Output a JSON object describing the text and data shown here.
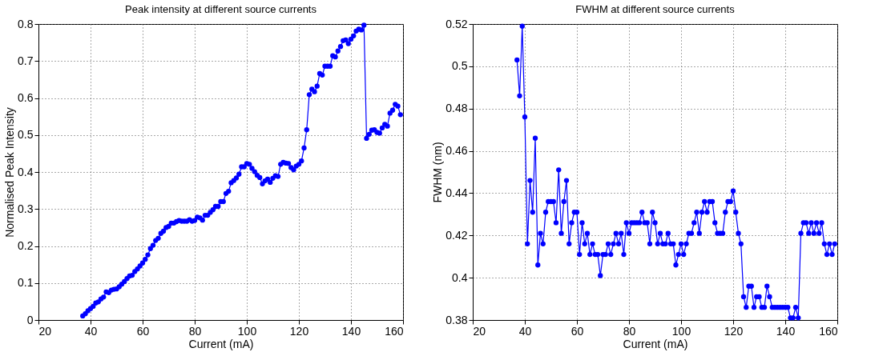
{
  "chart_data": [
    {
      "type": "line",
      "title": "Peak intensity at different source currents",
      "xlabel": "Current (mA)",
      "ylabel": "Normalised Peak Intensity",
      "xlim": [
        20,
        160
      ],
      "xticks": [
        20,
        40,
        60,
        80,
        100,
        120,
        140,
        160
      ],
      "ylim": [
        0,
        0.8
      ],
      "yticks": [
        0,
        0.1,
        0.2,
        0.3,
        0.4,
        0.5,
        0.6,
        0.7,
        0.8
      ],
      "grid": true,
      "marker": "circle",
      "line_style": "solid",
      "x": [
        37,
        38,
        39,
        40,
        41,
        42,
        43,
        44,
        45,
        46,
        47,
        48,
        49,
        50,
        51,
        52,
        53,
        54,
        55,
        56,
        57,
        58,
        59,
        60,
        61,
        62,
        63,
        64,
        65,
        66,
        67,
        68,
        69,
        70,
        71,
        72,
        73,
        74,
        75,
        76,
        77,
        78,
        79,
        80,
        81,
        82,
        83,
        84,
        85,
        86,
        87,
        88,
        89,
        90,
        91,
        92,
        93,
        94,
        95,
        96,
        97,
        98,
        99,
        100,
        101,
        102,
        103,
        104,
        105,
        106,
        107,
        108,
        109,
        110,
        111,
        112,
        113,
        114,
        115,
        116,
        117,
        118,
        119,
        120,
        121,
        122,
        123,
        124,
        125,
        126,
        127,
        128,
        129,
        130,
        131,
        132,
        133,
        134,
        135,
        136,
        137,
        138,
        139,
        140,
        141,
        142,
        143,
        144,
        145,
        146,
        147,
        148,
        149,
        150,
        151,
        152,
        153,
        154,
        155,
        156,
        157,
        158,
        159
      ],
      "series": [
        {
          "color": "#0000ff",
          "values": [
            0.011,
            0.017,
            0.025,
            0.031,
            0.037,
            0.046,
            0.049,
            0.057,
            0.062,
            0.076,
            0.074,
            0.081,
            0.083,
            0.084,
            0.09,
            0.097,
            0.104,
            0.112,
            0.119,
            0.121,
            0.131,
            0.138,
            0.146,
            0.154,
            0.164,
            0.176,
            0.193,
            0.202,
            0.215,
            0.221,
            0.234,
            0.24,
            0.25,
            0.253,
            0.262,
            0.262,
            0.266,
            0.269,
            0.267,
            0.267,
            0.267,
            0.271,
            0.267,
            0.269,
            0.278,
            0.276,
            0.27,
            0.283,
            0.283,
            0.291,
            0.298,
            0.307,
            0.307,
            0.32,
            0.32,
            0.342,
            0.348,
            0.371,
            0.377,
            0.384,
            0.394,
            0.414,
            0.414,
            0.423,
            0.421,
            0.41,
            0.401,
            0.391,
            0.385,
            0.368,
            0.376,
            0.381,
            0.372,
            0.383,
            0.39,
            0.388,
            0.421,
            0.426,
            0.424,
            0.423,
            0.412,
            0.406,
            0.416,
            0.421,
            0.43,
            0.465,
            0.514,
            0.609,
            0.624,
            0.617,
            0.632,
            0.666,
            0.662,
            0.686,
            0.686,
            0.686,
            0.714,
            0.711,
            0.727,
            0.739,
            0.755,
            0.757,
            0.747,
            0.759,
            0.768,
            0.781,
            0.786,
            0.784,
            0.797,
            0.491,
            0.502,
            0.513,
            0.514,
            0.507,
            0.505,
            0.519,
            0.529,
            0.524,
            0.559,
            0.567,
            0.583,
            0.578,
            0.555
          ]
        }
      ]
    },
    {
      "type": "line",
      "title": "FWHM at different source currents",
      "xlabel": "Current (mA)",
      "ylabel": "FWHM (nm)",
      "xlim": [
        20,
        160
      ],
      "xticks": [
        20,
        40,
        60,
        80,
        100,
        120,
        140,
        160
      ],
      "ylim": [
        0.38,
        0.52
      ],
      "yticks": [
        0.38,
        0.4,
        0.42,
        0.44,
        0.46,
        0.48,
        0.5,
        0.52
      ],
      "grid": true,
      "marker": "circle",
      "line_style": "solid",
      "x": [
        37,
        38,
        39,
        40,
        41,
        42,
        43,
        44,
        45,
        46,
        47,
        48,
        49,
        50,
        51,
        52,
        53,
        54,
        55,
        56,
        57,
        58,
        59,
        60,
        61,
        62,
        63,
        64,
        65,
        66,
        67,
        68,
        69,
        70,
        71,
        72,
        73,
        74,
        75,
        76,
        77,
        78,
        79,
        80,
        81,
        82,
        83,
        84,
        85,
        86,
        87,
        88,
        89,
        90,
        91,
        92,
        93,
        94,
        95,
        96,
        97,
        98,
        99,
        100,
        101,
        102,
        103,
        104,
        105,
        106,
        107,
        108,
        109,
        110,
        111,
        112,
        113,
        114,
        115,
        116,
        117,
        118,
        119,
        120,
        121,
        122,
        123,
        124,
        125,
        126,
        127,
        128,
        129,
        130,
        131,
        132,
        133,
        134,
        135,
        136,
        137,
        138,
        139,
        140,
        141,
        142,
        143,
        144,
        145,
        146,
        147,
        148,
        149,
        150,
        151,
        152,
        153,
        154,
        155,
        156,
        157,
        158,
        159
      ],
      "series": [
        {
          "color": "#0000ff",
          "values": [
            0.503,
            0.486,
            0.519,
            0.476,
            0.416,
            0.446,
            0.431,
            0.466,
            0.406,
            0.421,
            0.416,
            0.431,
            0.436,
            0.436,
            0.436,
            0.426,
            0.451,
            0.421,
            0.436,
            0.446,
            0.416,
            0.426,
            0.431,
            0.431,
            0.411,
            0.426,
            0.416,
            0.421,
            0.411,
            0.416,
            0.411,
            0.411,
            0.401,
            0.411,
            0.411,
            0.416,
            0.411,
            0.416,
            0.421,
            0.416,
            0.421,
            0.411,
            0.426,
            0.421,
            0.426,
            0.426,
            0.426,
            0.426,
            0.431,
            0.426,
            0.426,
            0.416,
            0.431,
            0.426,
            0.416,
            0.421,
            0.416,
            0.416,
            0.421,
            0.416,
            0.416,
            0.406,
            0.411,
            0.416,
            0.411,
            0.416,
            0.421,
            0.421,
            0.426,
            0.431,
            0.421,
            0.431,
            0.436,
            0.431,
            0.436,
            0.436,
            0.426,
            0.421,
            0.421,
            0.421,
            0.431,
            0.436,
            0.436,
            0.441,
            0.431,
            0.421,
            0.416,
            0.391,
            0.386,
            0.396,
            0.396,
            0.386,
            0.391,
            0.391,
            0.386,
            0.386,
            0.396,
            0.391,
            0.386,
            0.386,
            0.386,
            0.386,
            0.386,
            0.386,
            0.386,
            0.381,
            0.381,
            0.386,
            0.381,
            0.421,
            0.426,
            0.426,
            0.421,
            0.426,
            0.421,
            0.426,
            0.421,
            0.426,
            0.416,
            0.411,
            0.416,
            0.411,
            0.416
          ]
        }
      ]
    }
  ]
}
